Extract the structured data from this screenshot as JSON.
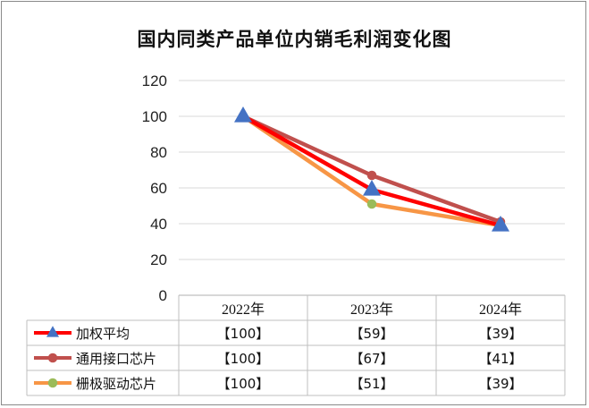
{
  "chart_data": {
    "type": "line",
    "title": "国内同类产品单位内销毛利润变化图",
    "categories": [
      "2022年",
      "2023年",
      "2024年"
    ],
    "ylim": [
      0,
      120
    ],
    "yticks": [
      0,
      20,
      40,
      60,
      80,
      100,
      120
    ],
    "grid": true,
    "legend": "data-table-bottom",
    "series": [
      {
        "name": "加权平均",
        "values": [
          100,
          59,
          39
        ],
        "labels": [
          "【100】",
          "【59】",
          "【39】"
        ],
        "color": "#ff0000",
        "marker": "triangle",
        "marker_color": "#4472c4"
      },
      {
        "name": "通用接口芯片",
        "values": [
          100,
          67,
          41
        ],
        "labels": [
          "【100】",
          "【67】",
          "【41】"
        ],
        "color": "#c0504d",
        "marker": "circle",
        "marker_color": "#c0504d"
      },
      {
        "name": "栅极驱动芯片",
        "values": [
          100,
          51,
          39
        ],
        "labels": [
          "【100】",
          "【51】",
          "【39】"
        ],
        "color": "#f79646",
        "marker": "circle",
        "marker_color": "#9bbb59"
      }
    ]
  }
}
